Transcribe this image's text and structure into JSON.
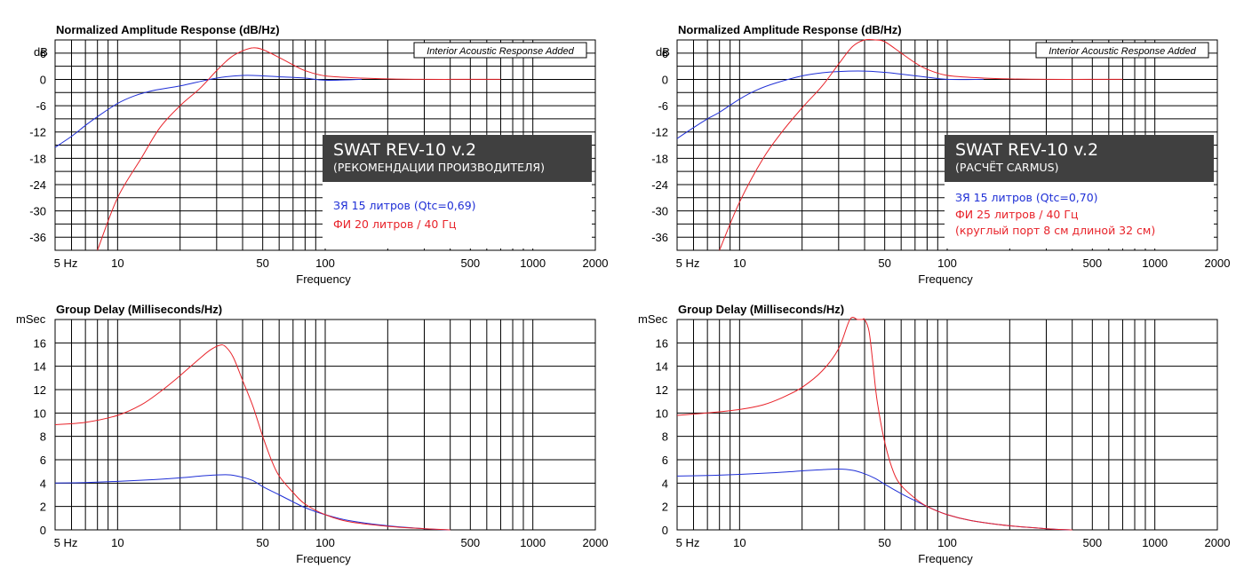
{
  "colors": {
    "closed_box": "#1f2fd6",
    "ported": "#e8232a",
    "grid": "#000000",
    "banner_bg": "#404040"
  },
  "chart_data": [
    {
      "id": "amp_left",
      "type": "line",
      "title": "Normalized Amplitude Response (dB/Hz)",
      "xlabel": "Frequency",
      "ylabel": "dB",
      "xscale": "log",
      "xlim": [
        5,
        2000
      ],
      "ylim": [
        -39,
        9
      ],
      "yticks": [
        "6",
        "0",
        "-6",
        "-12",
        "-18",
        "-24",
        "-30",
        "-36"
      ],
      "xticks": [
        "5  Hz",
        "10",
        "50",
        "100",
        "500",
        "1000",
        "2000"
      ],
      "grid": true,
      "note": "Interior Acoustic Response Added",
      "banner_title": "SWAT REV-10 v.2",
      "banner_subtitle": "(РЕКОМЕНДАЦИИ ПРОИЗВОДИТЕЛЯ)",
      "desc": [
        "ЗЯ 15 литров (Qtc=0,69)",
        "ФИ 20 литров / 40 Гц"
      ],
      "series": [
        {
          "color_key": "closed_box",
          "x": [
            5,
            6,
            7,
            8,
            10,
            12,
            15,
            20,
            30,
            40,
            50,
            60,
            80,
            100,
            150
          ],
          "y": [
            -15.5,
            -13,
            -10.5,
            -8.5,
            -5.5,
            -3.8,
            -2.5,
            -1.5,
            0.3,
            0.9,
            0.8,
            0.6,
            0.3,
            -0.2,
            0
          ]
        },
        {
          "color_key": "ported",
          "x": [
            8,
            10,
            13,
            16,
            20,
            25,
            30,
            35,
            40,
            45,
            50,
            60,
            70,
            80,
            100,
            150,
            200,
            300,
            500,
            700
          ],
          "y": [
            -39,
            -27,
            -18,
            -11,
            -6,
            -2,
            2,
            5,
            6.5,
            7.2,
            6.8,
            5,
            3.3,
            2,
            0.8,
            0.3,
            0.1,
            0,
            0,
            0
          ]
        }
      ]
    },
    {
      "id": "amp_right",
      "type": "line",
      "title": "Normalized Amplitude Response (dB/Hz)",
      "xlabel": "Frequency",
      "ylabel": "dB",
      "xscale": "log",
      "xlim": [
        5,
        2000
      ],
      "ylim": [
        -39,
        9
      ],
      "yticks": [
        "6",
        "0",
        "-6",
        "-12",
        "-18",
        "-24",
        "-30",
        "-36"
      ],
      "xticks": [
        "5  Hz",
        "10",
        "50",
        "100",
        "500",
        "1000",
        "2000"
      ],
      "grid": true,
      "note": "Interior Acoustic Response Added",
      "banner_title": "SWAT REV-10 v.2",
      "banner_subtitle": "(РАСЧЁТ CARMUS)",
      "desc": [
        "ЗЯ 15 литров (Qtc=0,70)",
        "ФИ 25 литров / 40 Гц",
        "(круглый порт 8 см длиной 32 см)"
      ],
      "series": [
        {
          "color_key": "closed_box",
          "x": [
            5,
            6,
            7,
            8,
            10,
            12,
            15,
            20,
            25,
            30,
            40,
            50,
            60,
            80,
            100,
            150
          ],
          "y": [
            -13.5,
            -11,
            -9,
            -7.5,
            -4.5,
            -2.5,
            -0.8,
            0.8,
            1.5,
            1.8,
            1.9,
            1.6,
            1.2,
            0.5,
            0,
            0
          ]
        },
        {
          "color_key": "ported",
          "x": [
            8,
            10,
            13,
            16,
            20,
            25,
            30,
            35,
            40,
            45,
            50,
            60,
            70,
            80,
            100,
            150,
            200,
            300,
            500,
            700
          ],
          "y": [
            -39,
            -28,
            -18,
            -12,
            -6.5,
            -1.5,
            3.5,
            7.5,
            9.5,
            9.7,
            8.6,
            6,
            3.8,
            2.3,
            0.9,
            0.3,
            0.1,
            0,
            0,
            0
          ]
        }
      ]
    },
    {
      "id": "gd_left",
      "type": "line",
      "title": "Group Delay (Milliseconds/Hz)",
      "xlabel": "Frequency",
      "ylabel": "mSec",
      "xscale": "log",
      "xlim": [
        5,
        2000
      ],
      "ylim": [
        0,
        18
      ],
      "yticks": [
        "16",
        "14",
        "12",
        "10",
        "8",
        "6",
        "4",
        "2",
        "0"
      ],
      "xticks": [
        "5  Hz",
        "10",
        "50",
        "100",
        "500",
        "1000",
        "2000"
      ],
      "grid": true,
      "series": [
        {
          "color_key": "closed_box",
          "x": [
            5,
            7,
            10,
            15,
            20,
            25,
            30,
            35,
            40,
            45,
            50,
            60,
            70,
            80,
            100,
            130,
            200,
            300,
            400
          ],
          "y": [
            4,
            4.05,
            4.15,
            4.3,
            4.45,
            4.6,
            4.7,
            4.7,
            4.5,
            4.2,
            3.7,
            3,
            2.4,
            1.9,
            1.3,
            0.8,
            0.35,
            0.1,
            0
          ]
        },
        {
          "color_key": "ported",
          "x": [
            5,
            7,
            10,
            13,
            16,
            20,
            25,
            28,
            31,
            33,
            36,
            40,
            45,
            50,
            55,
            60,
            70,
            80,
            100,
            130,
            200,
            300,
            400
          ],
          "y": [
            9,
            9.2,
            9.8,
            10.7,
            11.8,
            13.2,
            14.7,
            15.4,
            15.8,
            15.7,
            14.8,
            12.8,
            10.5,
            8,
            6,
            4.6,
            3.2,
            2.2,
            1.3,
            0.7,
            0.3,
            0.1,
            0
          ]
        }
      ]
    },
    {
      "id": "gd_right",
      "type": "line",
      "title": "Group Delay (Milliseconds/Hz)",
      "xlabel": "Frequency",
      "ylabel": "mSec",
      "xscale": "log",
      "xlim": [
        5,
        2000
      ],
      "ylim": [
        0,
        18
      ],
      "yticks": [
        "16",
        "14",
        "12",
        "10",
        "8",
        "6",
        "4",
        "2",
        "0"
      ],
      "xticks": [
        "5  Hz",
        "10",
        "50",
        "100",
        "500",
        "1000",
        "2000"
      ],
      "grid": true,
      "series": [
        {
          "color_key": "closed_box",
          "x": [
            5,
            7,
            10,
            15,
            20,
            25,
            30,
            35,
            40,
            45,
            50,
            60,
            70,
            80,
            100,
            130,
            200,
            300,
            400
          ],
          "y": [
            4.6,
            4.65,
            4.75,
            4.9,
            5.05,
            5.15,
            5.2,
            5.1,
            4.8,
            4.4,
            3.9,
            3.1,
            2.5,
            2,
            1.3,
            0.8,
            0.35,
            0.1,
            0
          ]
        },
        {
          "color_key": "ported",
          "x": [
            5,
            7,
            10,
            13,
            16,
            20,
            25,
            30,
            34,
            37,
            39,
            40,
            42,
            44,
            46,
            50,
            55,
            60,
            70,
            80,
            100,
            130,
            200,
            300,
            400
          ],
          "y": [
            9.8,
            10,
            10.3,
            10.7,
            11.3,
            12.2,
            13.6,
            15.5,
            18,
            18.5,
            18.5,
            18.3,
            17,
            14,
            11,
            7.5,
            5,
            3.8,
            2.7,
            2,
            1.3,
            0.8,
            0.35,
            0.1,
            0
          ]
        }
      ]
    }
  ]
}
